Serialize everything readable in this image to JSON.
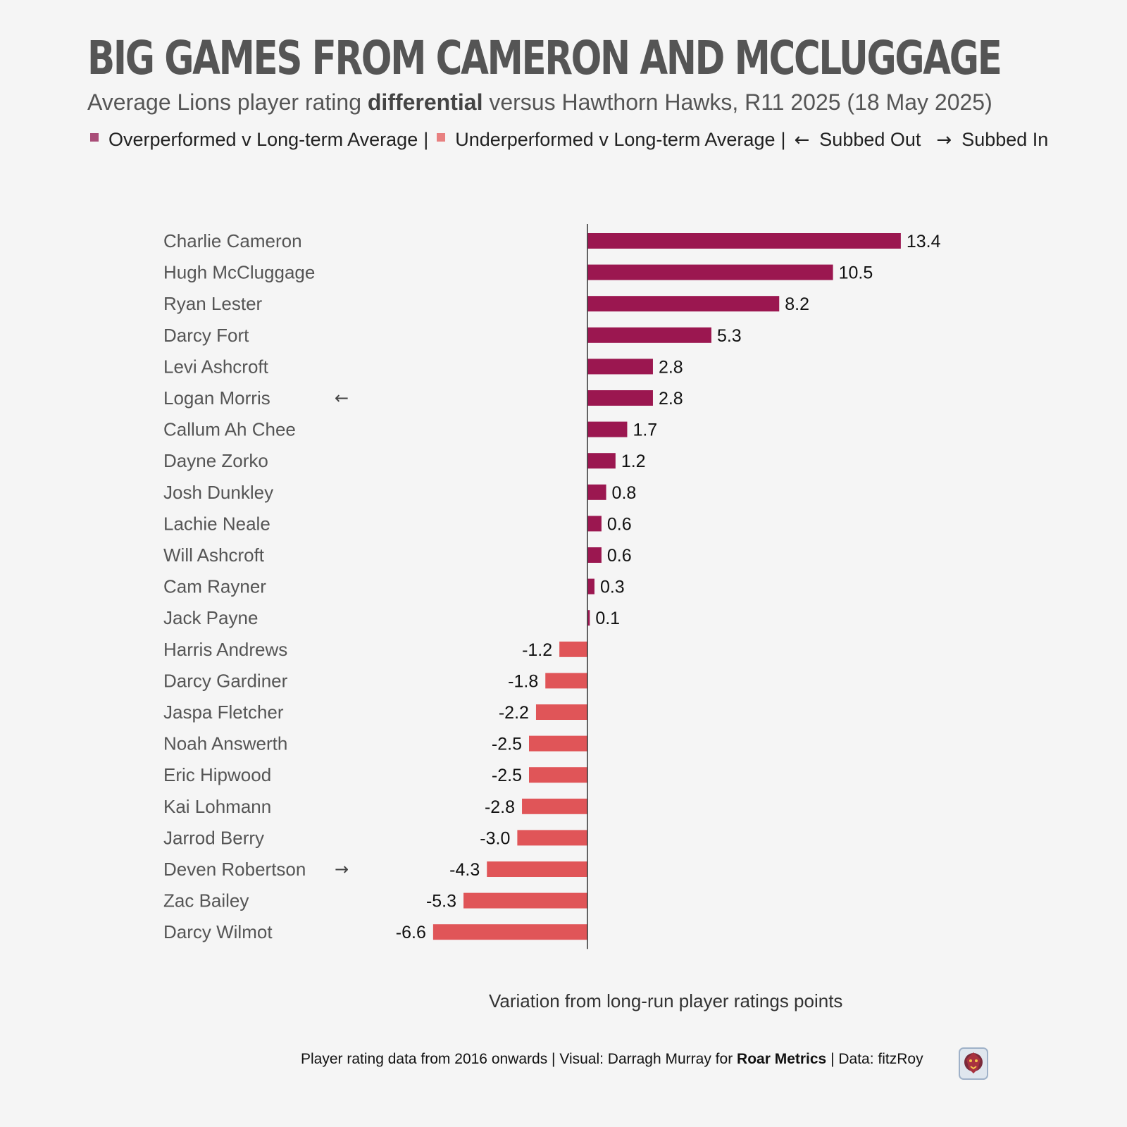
{
  "title": "BIG GAMES FROM CAMERON AND MCCLUGGAGE",
  "subtitle": {
    "before": "Average Lions player rating ",
    "bold": "differential",
    "after": " versus Hawthorn Hawks, R11 2025 (18 May 2025)"
  },
  "legend": {
    "over_label": "Overperformed v Long-term Average",
    "under_label": "Underperformed v Long-term Average",
    "separator": "|",
    "subbed_out_arrow": "←",
    "subbed_out_label": "Subbed Out",
    "subbed_in_arrow": "→",
    "subbed_in_label": "Subbed In"
  },
  "colors": {
    "over": "#9b1750",
    "under": "#e05558",
    "over_legend": "#a94d78",
    "under_legend": "#e88080",
    "axis": "#333333",
    "name_text": "#555555",
    "value_text": "#111111"
  },
  "chart_data": {
    "type": "bar",
    "orientation": "horizontal",
    "xlabel": "Variation from long-run player ratings points",
    "xlim": [
      -6.6,
      13.4
    ],
    "grid": false,
    "categories": [
      "Charlie Cameron",
      "Hugh McCluggage",
      "Ryan Lester",
      "Darcy Fort",
      "Levi Ashcroft",
      "Logan Morris",
      "Callum Ah Chee",
      "Dayne Zorko",
      "Josh Dunkley",
      "Lachie Neale",
      "Will Ashcroft",
      "Cam Rayner",
      "Jack Payne",
      "Harris Andrews",
      "Darcy Gardiner",
      "Jaspa Fletcher",
      "Noah Answerth",
      "Eric Hipwood",
      "Kai Lohmann",
      "Jarrod Berry",
      "Deven Robertson",
      "Zac Bailey",
      "Darcy Wilmot"
    ],
    "values": [
      13.4,
      10.5,
      8.2,
      5.3,
      2.8,
      2.8,
      1.7,
      1.2,
      0.8,
      0.6,
      0.6,
      0.3,
      0.1,
      -1.2,
      -1.8,
      -2.2,
      -2.5,
      -2.5,
      -2.8,
      -3.0,
      -4.3,
      -5.3,
      -6.6
    ],
    "value_labels": [
      "13.4",
      "10.5",
      "8.2",
      "5.3",
      "2.8",
      "2.8",
      "1.7",
      "1.2",
      "0.8",
      "0.6",
      "0.6",
      "0.3",
      "0.1",
      "-1.2",
      "-1.8",
      "-2.2",
      "-2.5",
      "-2.5",
      "-2.8",
      "-3.0",
      "-4.3",
      "-5.3",
      "-6.6"
    ],
    "substitution": [
      "",
      "",
      "",
      "",
      "",
      "out",
      "",
      "",
      "",
      "",
      "",
      "",
      "",
      "",
      "",
      "",
      "",
      "",
      "",
      "",
      "in",
      "",
      ""
    ]
  },
  "footer": {
    "before": "Player rating data from 2016 onwards | Visual: Darragh Murray for ",
    "bold": "Roar Metrics",
    "after": " | Data: fitzRoy"
  }
}
